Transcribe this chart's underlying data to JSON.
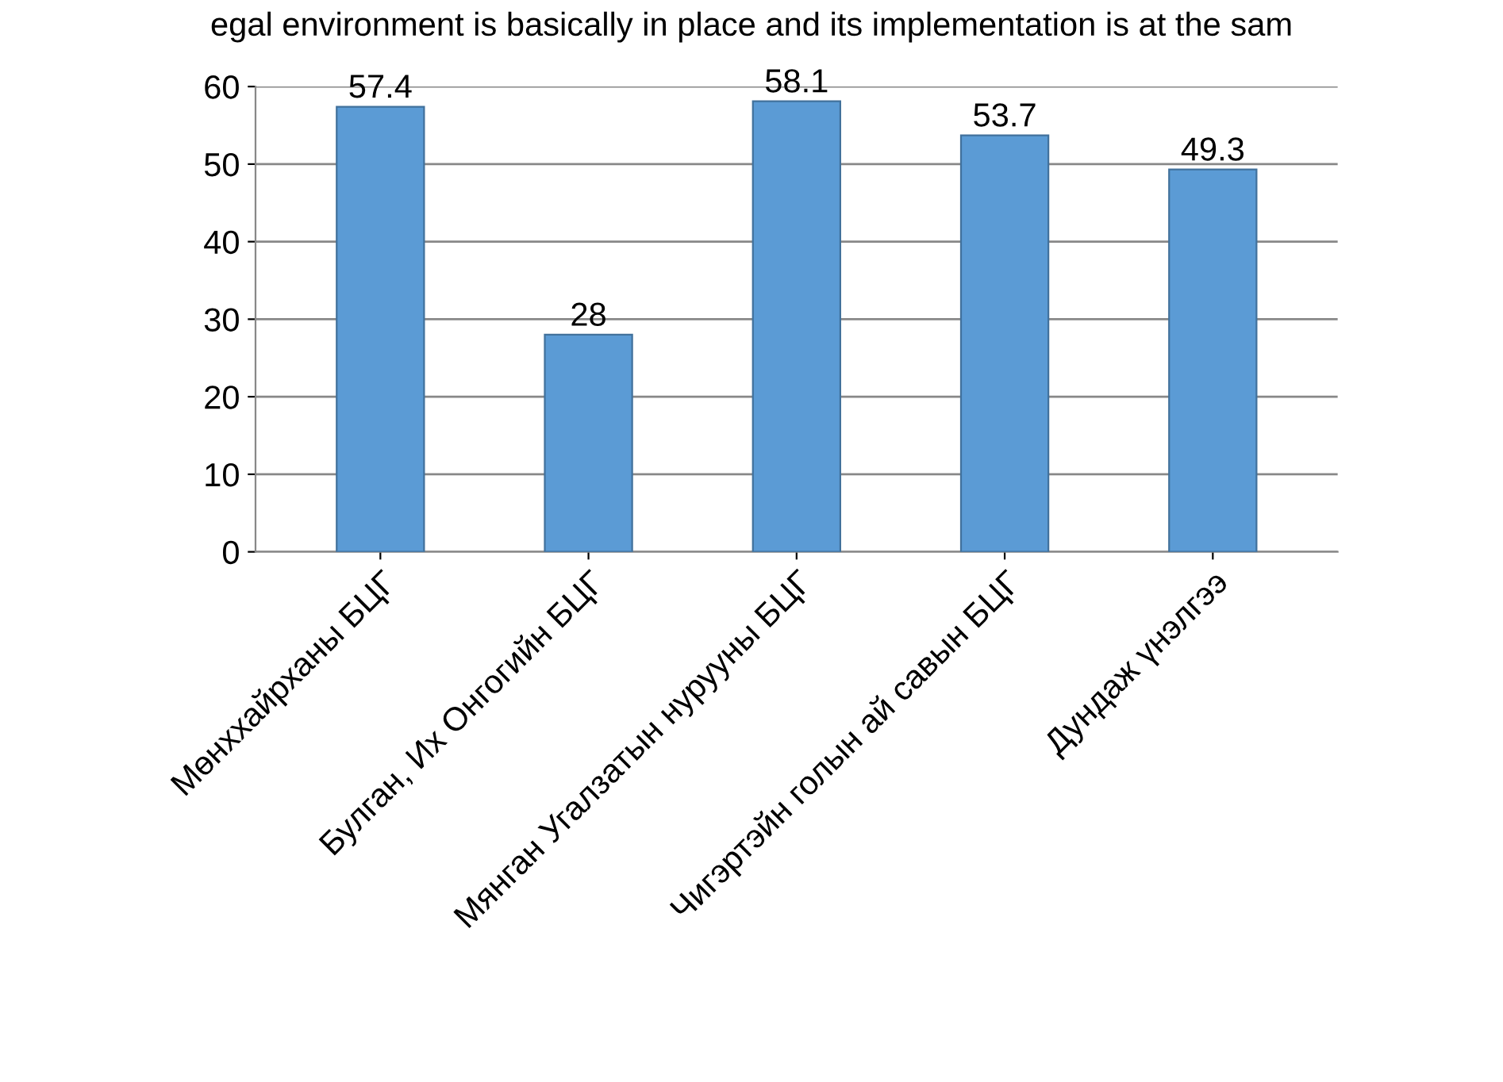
{
  "chart_data": {
    "type": "bar",
    "title": "egal environment is basically in place and its implementation is at the sam",
    "categories": [
      "Мөнххайрханы БЦГ",
      "Булган, Их Онгогийн БЦГ",
      "Мянган Угалзатын нурууны БЦГ",
      "Чигэртэйн голын ай савын БЦГ",
      "Дундаж үнэлгээ"
    ],
    "values": [
      57.4,
      28,
      58.1,
      53.7,
      49.3
    ],
    "color": "#5b9bd5",
    "ylim": [
      0,
      60
    ],
    "yticks": [
      0,
      10,
      20,
      30,
      40,
      50,
      60
    ],
    "grid": "y",
    "data_labels": true
  }
}
